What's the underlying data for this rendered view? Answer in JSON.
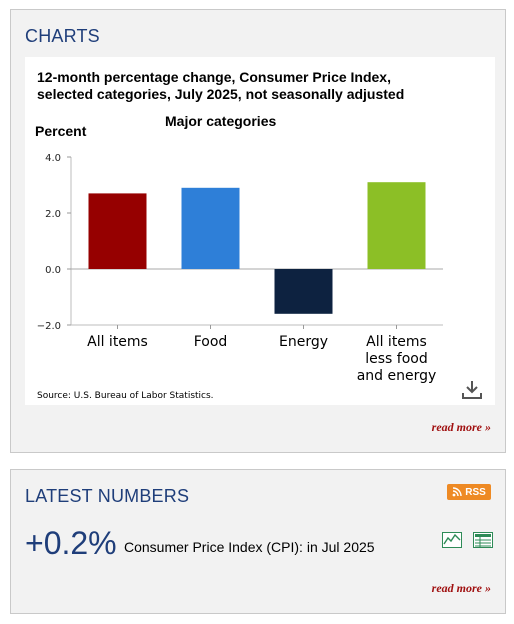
{
  "charts_panel": {
    "title": "CHARTS",
    "chart_title_line1": "12-month percentage change, Consumer Price Index,",
    "chart_title_line2": "selected categories, July 2025, not seasonally adjusted",
    "subtitle": "Major categories",
    "ylabel": "Percent",
    "source": "Source: U.S. Bureau of Labor Statistics.",
    "read_more": "read more »"
  },
  "chart_data": {
    "type": "bar",
    "title": "12-month percentage change, Consumer Price Index, selected categories, July 2025, not seasonally adjusted",
    "subtitle": "Major categories",
    "ylabel": "Percent",
    "ylim": [
      -2.0,
      4.0
    ],
    "yticks": [
      "4.0",
      "2.0",
      "0.0",
      "−2.0"
    ],
    "grid": false,
    "categories": [
      [
        "All items"
      ],
      [
        "Food"
      ],
      [
        "Energy"
      ],
      [
        "All items",
        "less food",
        "and energy"
      ]
    ],
    "values": [
      2.7,
      2.9,
      -1.6,
      3.1
    ],
    "colors": [
      "#960000",
      "#2e7fd8",
      "#0d2240",
      "#8cbf26"
    ]
  },
  "latest_panel": {
    "title": "LATEST NUMBERS",
    "rss_label": "RSS",
    "value": "+0.2%",
    "series_name": "Consumer Price Index (CPI):",
    "period": " in Jul 2025",
    "read_more": "read more »"
  }
}
